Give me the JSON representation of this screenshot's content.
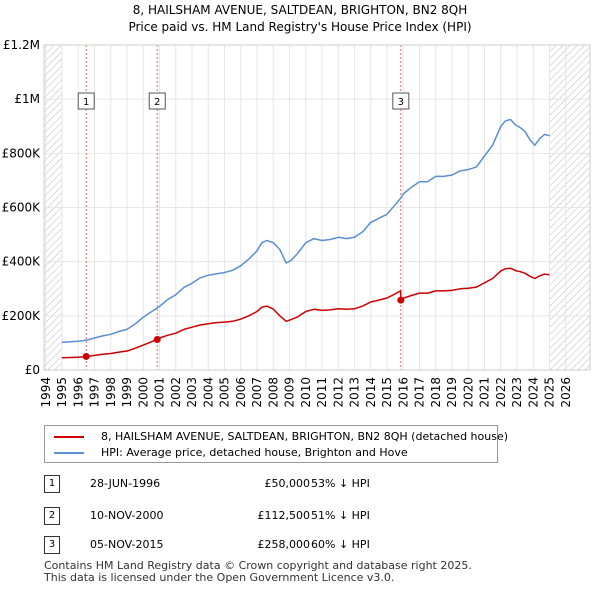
{
  "title": {
    "line1": "8, HAILSHAM AVENUE, SALTDEAN, BRIGHTON, BN2 8QH",
    "line2": "Price paid vs. HM Land Registry's House Price Index (HPI)"
  },
  "legend": {
    "items": [
      {
        "label": "8, HAILSHAM AVENUE, SALTDEAN, BRIGHTON, BN2 8QH (detached house)",
        "color": "#cc0000"
      },
      {
        "label": "HPI: Average price, detached house, Brighton and Hove",
        "color": "#5b8fd1"
      }
    ]
  },
  "transactions": [
    {
      "num": "1",
      "date": "28-JUN-1996",
      "price": "£50,000",
      "hpi": "53% ↓ HPI"
    },
    {
      "num": "2",
      "date": "10-NOV-2000",
      "price": "£112,500",
      "hpi": "51% ↓ HPI"
    },
    {
      "num": "3",
      "date": "05-NOV-2015",
      "price": "£258,000",
      "hpi": "60% ↓ HPI"
    }
  ],
  "footer": {
    "line1": "Contains HM Land Registry data © Crown copyright and database right 2025.",
    "line2": "This data is licensed under the Open Government Licence v3.0."
  },
  "colors": {
    "price_line": "#cc0000",
    "hpi_line": "#5b8fd1",
    "vline": "#e06666",
    "hatch": "#bbbbbb"
  },
  "chart_data": {
    "type": "line",
    "title": "8, HAILSHAM AVENUE, SALTDEAN, BRIGHTON, BN2 8QH — Price paid vs. HM Land Registry's House Price Index (HPI)",
    "xlabel": "",
    "ylabel": "",
    "xlim": [
      1994,
      2026
    ],
    "ylim": [
      0,
      1200000
    ],
    "x_ticks": [
      1994,
      1995,
      1996,
      1997,
      1998,
      1999,
      2000,
      2001,
      2002,
      2003,
      2004,
      2005,
      2006,
      2007,
      2008,
      2009,
      2010,
      2011,
      2012,
      2013,
      2014,
      2015,
      2016,
      2017,
      2018,
      2019,
      2020,
      2021,
      2022,
      2023,
      2024,
      2025,
      2026
    ],
    "y_ticks": [
      {
        "value": 0,
        "label": "£0"
      },
      {
        "value": 200000,
        "label": "£200K"
      },
      {
        "value": 400000,
        "label": "£400K"
      },
      {
        "value": 600000,
        "label": "£600K"
      },
      {
        "value": 800000,
        "label": "£800K"
      },
      {
        "value": 1000000,
        "label": "£1M"
      },
      {
        "value": 1200000,
        "label": "£1.2M"
      }
    ],
    "grid": true,
    "legend_position": "below",
    "data_start": 1995.0,
    "data_end": 2025.0,
    "series": [
      {
        "name": "HPI: Average price, detached house, Brighton and Hove",
        "x": [
          1995.0,
          1995.5,
          1996.0,
          1996.5,
          1997.0,
          1997.5,
          1998.0,
          1998.5,
          1999.0,
          1999.5,
          2000.0,
          2000.5,
          2001.0,
          2001.5,
          2002.0,
          2002.5,
          2003.0,
          2003.5,
          2004.0,
          2004.5,
          2005.0,
          2005.5,
          2006.0,
          2006.5,
          2007.0,
          2007.3,
          2007.6,
          2008.0,
          2008.4,
          2008.8,
          2009.1,
          2009.5,
          2010.0,
          2010.5,
          2011.0,
          2011.5,
          2012.0,
          2012.5,
          2013.0,
          2013.5,
          2014.0,
          2014.5,
          2015.0,
          2015.5,
          2015.85,
          2016.0,
          2016.5,
          2017.0,
          2017.5,
          2018.0,
          2018.5,
          2019.0,
          2019.5,
          2020.0,
          2020.5,
          2021.0,
          2021.5,
          2022.0,
          2022.3,
          2022.6,
          2022.9,
          2023.2,
          2023.5,
          2023.8,
          2024.1,
          2024.4,
          2024.7,
          2025.0
        ],
        "values": [
          102000,
          104000,
          106000,
          110000,
          118000,
          126000,
          132000,
          142000,
          150000,
          170000,
          195000,
          215000,
          235000,
          260000,
          278000,
          305000,
          320000,
          340000,
          350000,
          355000,
          360000,
          368000,
          385000,
          410000,
          440000,
          470000,
          478000,
          470000,
          445000,
          395000,
          405000,
          430000,
          470000,
          485000,
          478000,
          482000,
          490000,
          485000,
          490000,
          510000,
          545000,
          560000,
          575000,
          610000,
          635000,
          650000,
          675000,
          695000,
          695000,
          715000,
          715000,
          720000,
          735000,
          740000,
          750000,
          790000,
          830000,
          900000,
          920000,
          925000,
          905000,
          895000,
          880000,
          850000,
          830000,
          855000,
          870000,
          865000
        ]
      },
      {
        "name": "8, HAILSHAM AVENUE, SALTDEAN, BRIGHTON, BN2 8QH (detached house)",
        "x": [
          1995.0,
          1995.5,
          1996.0,
          1996.49,
          1997.0,
          1997.5,
          1998.0,
          1998.5,
          1999.0,
          1999.5,
          2000.0,
          2000.5,
          2000.86,
          2001.0,
          2001.5,
          2002.0,
          2002.5,
          2003.0,
          2003.5,
          2004.0,
          2004.5,
          2005.0,
          2005.5,
          2006.0,
          2006.5,
          2007.0,
          2007.3,
          2007.6,
          2008.0,
          2008.4,
          2008.8,
          2009.1,
          2009.5,
          2010.0,
          2010.5,
          2011.0,
          2011.5,
          2012.0,
          2012.5,
          2013.0,
          2013.5,
          2014.0,
          2014.5,
          2015.0,
          2015.5,
          2015.84,
          2015.85,
          2016.0,
          2016.5,
          2017.0,
          2017.5,
          2018.0,
          2018.5,
          2019.0,
          2019.5,
          2020.0,
          2020.5,
          2021.0,
          2021.5,
          2022.0,
          2022.3,
          2022.6,
          2022.9,
          2023.2,
          2023.5,
          2023.8,
          2024.1,
          2024.4,
          2024.7,
          2025.0
        ],
        "values": [
          45000,
          46000,
          47000,
          50000,
          54000,
          58000,
          61000,
          66000,
          70000,
          80000,
          92000,
          104000,
          112500,
          118000,
          128000,
          136000,
          150000,
          158000,
          166000,
          171000,
          175000,
          177000,
          180000,
          188000,
          200000,
          216000,
          232000,
          236000,
          225000,
          200000,
          180000,
          186000,
          196000,
          216000,
          224000,
          220000,
          222000,
          226000,
          224000,
          226000,
          236000,
          251000,
          258000,
          266000,
          281000,
          292000,
          258000,
          265000,
          275000,
          284000,
          284000,
          292000,
          292000,
          294000,
          300000,
          302000,
          306000,
          322000,
          338000,
          366000,
          374000,
          376000,
          367000,
          363000,
          357000,
          346000,
          338000,
          348000,
          354000,
          352000
        ]
      }
    ],
    "sales": [
      {
        "label": "1",
        "x": 1996.49,
        "value": 50000
      },
      {
        "label": "2",
        "x": 2000.86,
        "value": 112500
      },
      {
        "label": "3",
        "x": 2015.85,
        "value": 258000
      }
    ]
  }
}
